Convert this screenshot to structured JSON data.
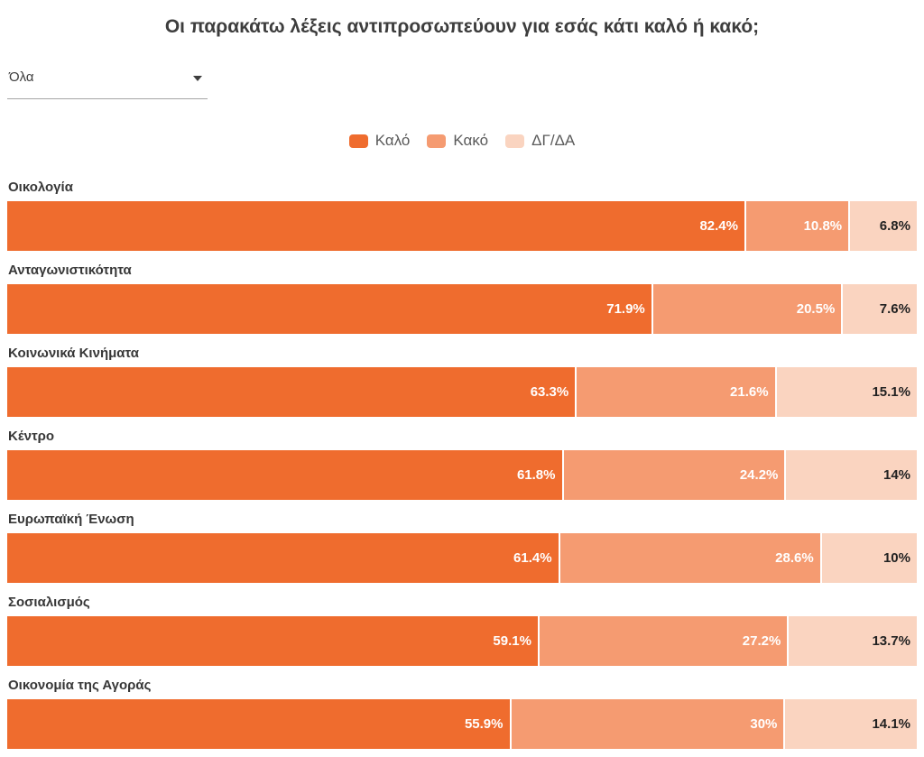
{
  "title": "Οι παρακάτω λέξεις αντιπροσωπεύουν για εσάς κάτι καλό ή κακό;",
  "filter": {
    "value": "Όλα"
  },
  "legend": [
    {
      "label": "Καλό",
      "color": "#EF6C2E"
    },
    {
      "label": "Κακό",
      "color": "#F59B71"
    },
    {
      "label": "ΔΓ/ΔΑ",
      "color": "#FAD4C0"
    }
  ],
  "colors": {
    "good": "#EF6C2E",
    "bad": "#F59B71",
    "dkna": "#FAD4C0",
    "value_label_light": "#ffffff",
    "value_label_dark": "#222222"
  },
  "chart_data": {
    "type": "bar",
    "stacked": true,
    "orientation": "horizontal",
    "xlim": [
      0,
      100
    ],
    "grid": false,
    "legend_position": "top-center",
    "categories": [
      "Οικολογία",
      "Ανταγωνιστικότητα",
      "Κοινωνικά Κινήματα",
      "Κέντρο",
      "Ευρωπαϊκή Ένωση",
      "Σοσιαλισμός",
      "Οικονομία της Αγοράς"
    ],
    "series": [
      {
        "name": "Καλό",
        "color": "#EF6C2E",
        "text_color": "#ffffff",
        "values": [
          82.4,
          71.9,
          63.3,
          61.8,
          61.4,
          59.1,
          55.9
        ],
        "labels": [
          "82.4%",
          "71.9%",
          "63.3%",
          "61.8%",
          "61.4%",
          "59.1%",
          "55.9%"
        ]
      },
      {
        "name": "Κακό",
        "color": "#F59B71",
        "text_color": "#ffffff",
        "values": [
          10.8,
          20.5,
          21.6,
          24.2,
          28.6,
          27.2,
          30
        ],
        "labels": [
          "10.8%",
          "20.5%",
          "21.6%",
          "24.2%",
          "28.6%",
          "27.2%",
          "30%"
        ]
      },
      {
        "name": "ΔΓ/ΔΑ",
        "color": "#FAD4C0",
        "text_color": "#222222",
        "values": [
          6.8,
          7.6,
          15.1,
          14,
          10,
          13.7,
          14.1
        ],
        "labels": [
          "6.8%",
          "7.6%",
          "15.1%",
          "14%",
          "10%",
          "13.7%",
          "14.1%"
        ]
      }
    ]
  }
}
